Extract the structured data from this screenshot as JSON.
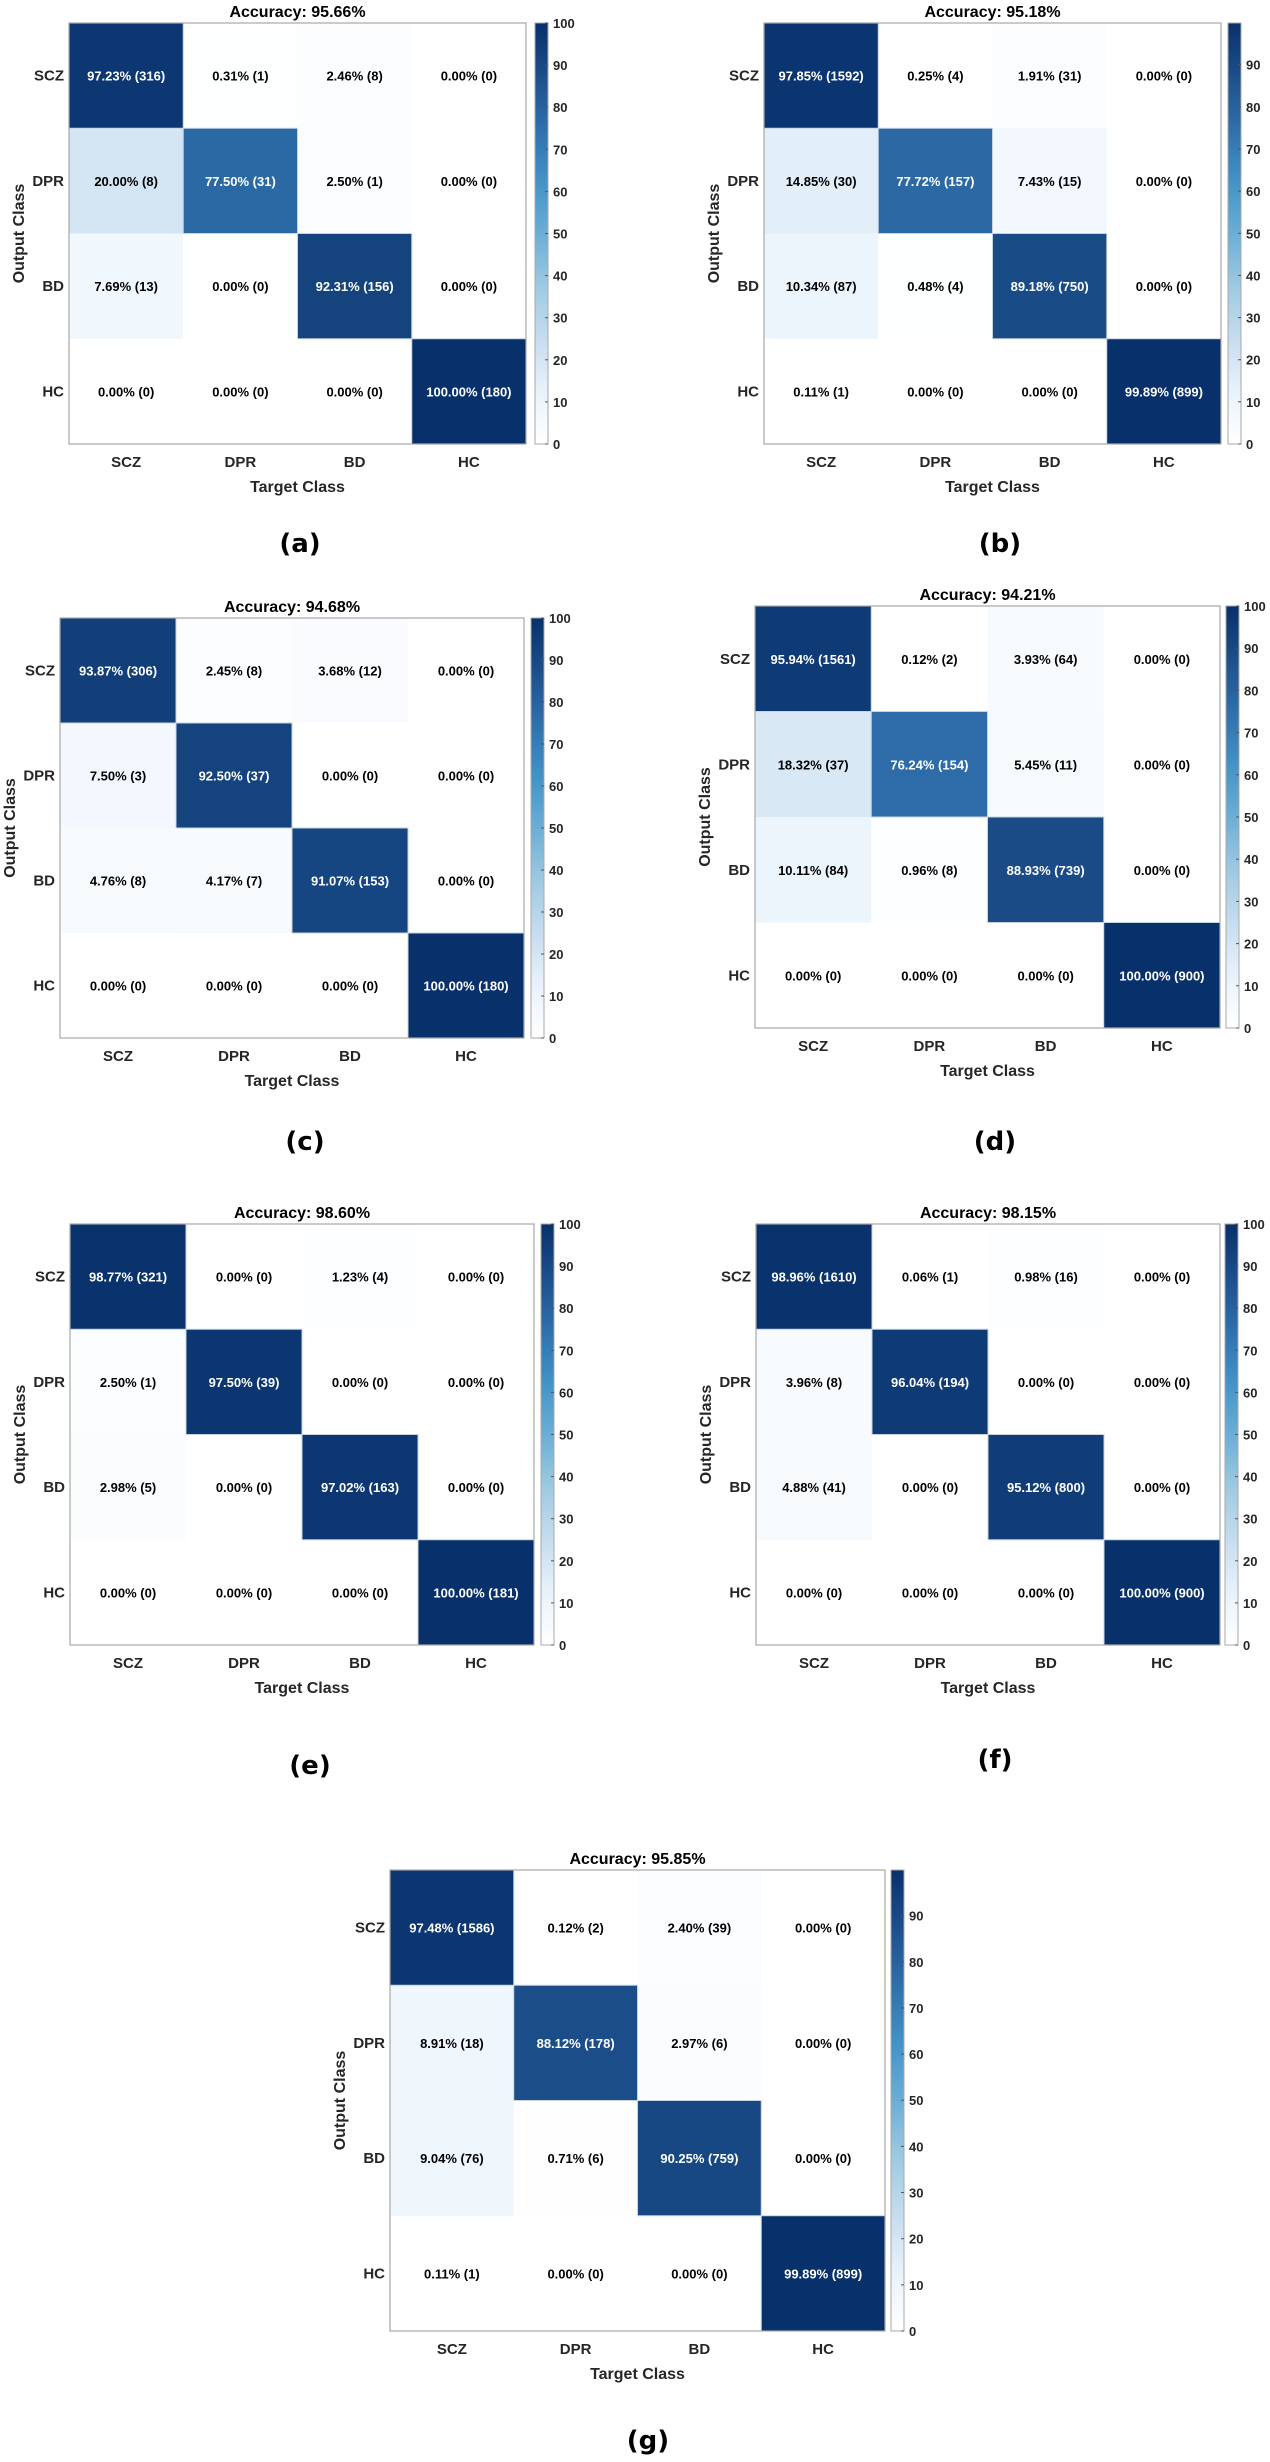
{
  "chart_data": {
    "type": "heatmap",
    "xlabel": "Target Class",
    "ylabel": "Output Class",
    "classes": [
      "SCZ",
      "DPR",
      "BD",
      "HC"
    ],
    "panels": [
      {
        "label": "(a)",
        "title": "Accuracy: 95.66%",
        "colorbar_ticks": [
          0,
          10,
          20,
          30,
          40,
          50,
          60,
          70,
          80,
          90,
          100
        ],
        "colorbar_max": 100,
        "pct": [
          [
            97.23,
            0.31,
            2.46,
            0.0
          ],
          [
            20.0,
            77.5,
            2.5,
            0.0
          ],
          [
            7.69,
            0.0,
            92.31,
            0.0
          ],
          [
            0.0,
            0.0,
            0.0,
            100.0
          ]
        ],
        "counts": [
          [
            316,
            1,
            8,
            0
          ],
          [
            8,
            31,
            1,
            0
          ],
          [
            13,
            0,
            156,
            0
          ],
          [
            0,
            0,
            0,
            180
          ]
        ]
      },
      {
        "label": "(b)",
        "title": "Accuracy: 95.18%",
        "colorbar_ticks": [
          0,
          10,
          20,
          30,
          40,
          50,
          60,
          70,
          80,
          90
        ],
        "colorbar_max": 99.89,
        "pct": [
          [
            97.85,
            0.25,
            1.91,
            0.0
          ],
          [
            14.85,
            77.72,
            7.43,
            0.0
          ],
          [
            10.34,
            0.48,
            89.18,
            0.0
          ],
          [
            0.11,
            0.0,
            0.0,
            99.89
          ]
        ],
        "counts": [
          [
            1592,
            4,
            31,
            0
          ],
          [
            30,
            157,
            15,
            0
          ],
          [
            87,
            4,
            750,
            0
          ],
          [
            1,
            0,
            0,
            899
          ]
        ]
      },
      {
        "label": "(c)",
        "title": "Accuracy: 94.68%",
        "colorbar_ticks": [
          0,
          10,
          20,
          30,
          40,
          50,
          60,
          70,
          80,
          90,
          100
        ],
        "colorbar_max": 100,
        "pct": [
          [
            93.87,
            2.45,
            3.68,
            0.0
          ],
          [
            7.5,
            92.5,
            0.0,
            0.0
          ],
          [
            4.76,
            4.17,
            91.07,
            0.0
          ],
          [
            0.0,
            0.0,
            0.0,
            100.0
          ]
        ],
        "counts": [
          [
            306,
            8,
            12,
            0
          ],
          [
            3,
            37,
            0,
            0
          ],
          [
            8,
            7,
            153,
            0
          ],
          [
            0,
            0,
            0,
            180
          ]
        ]
      },
      {
        "label": "(d)",
        "title": "Accuracy: 94.21%",
        "colorbar_ticks": [
          0,
          10,
          20,
          30,
          40,
          50,
          60,
          70,
          80,
          90,
          100
        ],
        "colorbar_max": 100,
        "pct": [
          [
            95.94,
            0.12,
            3.93,
            0.0
          ],
          [
            18.32,
            76.24,
            5.45,
            0.0
          ],
          [
            10.11,
            0.96,
            88.93,
            0.0
          ],
          [
            0.0,
            0.0,
            0.0,
            100.0
          ]
        ],
        "counts": [
          [
            1561,
            2,
            64,
            0
          ],
          [
            37,
            154,
            11,
            0
          ],
          [
            84,
            8,
            739,
            0
          ],
          [
            0,
            0,
            0,
            900
          ]
        ]
      },
      {
        "label": "(e)",
        "title": "Accuracy: 98.60%",
        "colorbar_ticks": [
          0,
          10,
          20,
          30,
          40,
          50,
          60,
          70,
          80,
          90,
          100
        ],
        "colorbar_max": 100,
        "pct": [
          [
            98.77,
            0.0,
            1.23,
            0.0
          ],
          [
            2.5,
            97.5,
            0.0,
            0.0
          ],
          [
            2.98,
            0.0,
            97.02,
            0.0
          ],
          [
            0.0,
            0.0,
            0.0,
            100.0
          ]
        ],
        "counts": [
          [
            321,
            0,
            4,
            0
          ],
          [
            1,
            39,
            0,
            0
          ],
          [
            5,
            0,
            163,
            0
          ],
          [
            0,
            0,
            0,
            181
          ]
        ]
      },
      {
        "label": "(f)",
        "title": "Accuracy: 98.15%",
        "colorbar_ticks": [
          0,
          10,
          20,
          30,
          40,
          50,
          60,
          70,
          80,
          90,
          100
        ],
        "colorbar_max": 100,
        "pct": [
          [
            98.96,
            0.06,
            0.98,
            0.0
          ],
          [
            3.96,
            96.04,
            0.0,
            0.0
          ],
          [
            4.88,
            0.0,
            95.12,
            0.0
          ],
          [
            0.0,
            0.0,
            0.0,
            100.0
          ]
        ],
        "counts": [
          [
            1610,
            1,
            16,
            0
          ],
          [
            8,
            194,
            0,
            0
          ],
          [
            41,
            0,
            800,
            0
          ],
          [
            0,
            0,
            0,
            900
          ]
        ]
      },
      {
        "label": "(g)",
        "title": "Accuracy: 95.85%",
        "colorbar_ticks": [
          0,
          10,
          20,
          30,
          40,
          50,
          60,
          70,
          80,
          90
        ],
        "colorbar_max": 99.89,
        "pct": [
          [
            97.48,
            0.12,
            2.4,
            0.0
          ],
          [
            8.91,
            88.12,
            2.97,
            0.0
          ],
          [
            9.04,
            0.71,
            90.25,
            0.0
          ],
          [
            0.11,
            0.0,
            0.0,
            99.89
          ]
        ],
        "counts": [
          [
            1586,
            2,
            39,
            0
          ],
          [
            18,
            178,
            6,
            0
          ],
          [
            76,
            6,
            759,
            0
          ],
          [
            1,
            0,
            0,
            899
          ]
        ]
      }
    ],
    "colormap": [
      "#ffffff",
      "#e9f3fb",
      "#c6dcef",
      "#9ecae1",
      "#6baed6",
      "#4292c6",
      "#2f6fab",
      "#1c4f8a",
      "#08306b"
    ]
  }
}
